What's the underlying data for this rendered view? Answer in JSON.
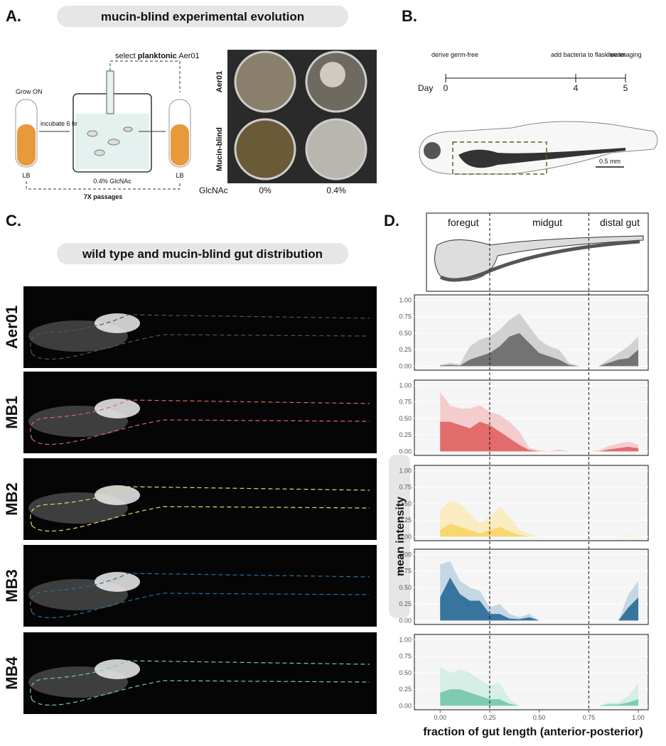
{
  "panels": {
    "a": {
      "label": "A.",
      "title": "mucin-blind experimental evolution",
      "grow": "Grow ON",
      "incubate": "incubate 6 hr",
      "select_pre": "select ",
      "select_bold": "planktonic",
      "select_post": " Aer01",
      "lb_left": "LB",
      "medium": "0.4% GlcNAc",
      "lb_right": "LB",
      "passages": "7X passages",
      "row_labels": [
        "Aer01",
        "Mucin-blind"
      ],
      "glcnac": "GlcNAc",
      "col_labels": [
        "0%",
        "0.4%"
      ]
    },
    "b": {
      "label": "B.",
      "events": [
        "derive germ-free",
        "add bacteria to flask water",
        "live imaging"
      ],
      "day": "Day",
      "days": [
        "0",
        "4",
        "5"
      ],
      "scale": "0.5 mm"
    },
    "c": {
      "label": "C.",
      "title": "wild type and mucin-blind gut distribution",
      "strains": [
        {
          "name": "Aer01",
          "color": "#555555"
        },
        {
          "name": "MB1",
          "color": "#e06666"
        },
        {
          "name": "MB2",
          "color": "#f5d66b"
        },
        {
          "name": "MB3",
          "color": "#2f6f9a"
        },
        {
          "name": "MB4",
          "color": "#79c9ad"
        }
      ]
    },
    "d": {
      "label": "D.",
      "regions": [
        "foregut",
        "midgut",
        "distal gut"
      ],
      "boundaries": [
        0.25,
        0.75
      ],
      "ylabel": "mean intensity",
      "xlabel": "fraction of gut length (anterior-posterior)"
    }
  },
  "chart_data": [
    {
      "type": "area",
      "x": [
        0,
        0.05,
        0.1,
        0.15,
        0.2,
        0.25,
        0.3,
        0.35,
        0.4,
        0.45,
        0.5,
        0.55,
        0.6,
        0.65,
        0.7,
        0.75,
        0.8,
        0.85,
        0.9,
        0.95,
        1
      ],
      "series": [
        {
          "color": "#c8c8c8",
          "values": [
            0.02,
            0.05,
            0.03,
            0.3,
            0.4,
            0.45,
            0.55,
            0.7,
            0.8,
            0.6,
            0.4,
            0.3,
            0.25,
            0.05,
            0,
            0,
            0,
            0.1,
            0.2,
            0.3,
            0.45
          ]
        },
        {
          "color": "#6e6e6e",
          "values": [
            0.01,
            0.02,
            0.01,
            0.1,
            0.15,
            0.2,
            0.3,
            0.45,
            0.5,
            0.35,
            0.2,
            0.15,
            0.1,
            0.02,
            0,
            0,
            0,
            0.05,
            0.1,
            0.12,
            0.25
          ]
        }
      ],
      "xlim": [
        -0.13,
        1.05
      ],
      "ylim": [
        -0.06,
        1.08
      ],
      "yticks": [
        {
          "value": 0,
          "label": "0.00"
        },
        0.25,
        {
          "value": 0.5,
          "label": "0.50"
        },
        0.75,
        {
          "value": 1,
          "label": "1.00"
        }
      ],
      "grid": true
    },
    {
      "type": "area",
      "x": [
        0,
        0.05,
        0.1,
        0.15,
        0.2,
        0.25,
        0.3,
        0.35,
        0.4,
        0.45,
        0.5,
        0.55,
        0.6,
        0.65,
        0.7,
        0.75,
        0.8,
        0.85,
        0.9,
        0.95,
        1
      ],
      "series": [
        {
          "color": "#f4c2c2",
          "values": [
            0.9,
            0.7,
            0.65,
            0.65,
            0.7,
            0.6,
            0.55,
            0.45,
            0.3,
            0.05,
            0.02,
            0,
            0.03,
            0,
            0,
            0,
            0.02,
            0.08,
            0.12,
            0.15,
            0.1
          ]
        },
        {
          "color": "#e06666",
          "values": [
            0.45,
            0.45,
            0.4,
            0.35,
            0.45,
            0.4,
            0.3,
            0.2,
            0.1,
            0.02,
            0,
            0,
            0,
            0,
            0,
            0,
            0,
            0.03,
            0.05,
            0.07,
            0.05
          ]
        }
      ],
      "xlim": [
        -0.13,
        1.05
      ],
      "ylim": [
        -0.06,
        1.08
      ],
      "yticks": [
        {
          "value": 0,
          "label": "0.00"
        },
        0.25,
        {
          "value": 0.5,
          "label": "0.50"
        },
        0.75,
        {
          "value": 1,
          "label": "1.00"
        }
      ],
      "grid": true
    },
    {
      "type": "area",
      "x": [
        0,
        0.05,
        0.1,
        0.15,
        0.2,
        0.25,
        0.3,
        0.35,
        0.4,
        0.45,
        0.5,
        0.55,
        0.6,
        0.65,
        0.7,
        0.75,
        0.8,
        0.85,
        0.9,
        0.95,
        1
      ],
      "series": [
        {
          "color": "#fbeab4",
          "values": [
            0.4,
            0.55,
            0.5,
            0.35,
            0.2,
            0.3,
            0.45,
            0.3,
            0.1,
            0.05,
            0,
            0,
            0,
            0,
            0,
            0,
            0,
            0,
            0,
            0.02,
            0
          ]
        },
        {
          "color": "#f5d66b",
          "values": [
            0.1,
            0.2,
            0.15,
            0.1,
            0.05,
            0.1,
            0.15,
            0.08,
            0.03,
            0,
            0,
            0,
            0,
            0,
            0,
            0,
            0,
            0,
            0,
            0,
            0
          ]
        }
      ],
      "xlim": [
        -0.13,
        1.05
      ],
      "ylim": [
        -0.06,
        1.08
      ],
      "yticks": [
        {
          "value": 0,
          "label": "0.00"
        },
        0.25,
        {
          "value": 0.5,
          "label": "0.50"
        },
        0.75,
        {
          "value": 1,
          "label": "1.00"
        }
      ],
      "grid": true
    },
    {
      "type": "area",
      "x": [
        0,
        0.05,
        0.1,
        0.15,
        0.2,
        0.25,
        0.3,
        0.35,
        0.4,
        0.45,
        0.5,
        0.55,
        0.6,
        0.65,
        0.7,
        0.75,
        0.8,
        0.85,
        0.9,
        0.95,
        1
      ],
      "series": [
        {
          "color": "#b9cfe0",
          "values": [
            0.85,
            0.9,
            0.6,
            0.5,
            0.45,
            0.2,
            0.25,
            0.1,
            0.05,
            0.1,
            0,
            0,
            0,
            0,
            0,
            0,
            0,
            0,
            0,
            0.4,
            0.6
          ]
        },
        {
          "color": "#2f6f9a",
          "values": [
            0.35,
            0.65,
            0.4,
            0.3,
            0.3,
            0.1,
            0.1,
            0.03,
            0.02,
            0.05,
            0,
            0,
            0,
            0,
            0,
            0,
            0,
            0,
            0,
            0.2,
            0.35
          ]
        }
      ],
      "xlim": [
        -0.13,
        1.05
      ],
      "ylim": [
        -0.06,
        1.08
      ],
      "yticks": [
        {
          "value": 0,
          "label": "0.00"
        },
        0.25,
        {
          "value": 0.5,
          "label": "0.50"
        },
        0.75,
        {
          "value": 1,
          "label": "1.00"
        }
      ],
      "grid": true
    },
    {
      "type": "area",
      "x": [
        0,
        0.05,
        0.1,
        0.15,
        0.2,
        0.25,
        0.3,
        0.35,
        0.4,
        0.45,
        0.5,
        0.55,
        0.6,
        0.65,
        0.7,
        0.75,
        0.8,
        0.85,
        0.9,
        0.95,
        1
      ],
      "series": [
        {
          "color": "#cdeee2",
          "values": [
            0.6,
            0.5,
            0.55,
            0.5,
            0.4,
            0.3,
            0.35,
            0.1,
            0,
            0,
            0,
            0,
            0,
            0,
            0,
            0,
            0,
            0.05,
            0.05,
            0.15,
            0.35
          ]
        },
        {
          "color": "#79c9ad",
          "values": [
            0.2,
            0.25,
            0.25,
            0.2,
            0.15,
            0.1,
            0.1,
            0.03,
            0,
            0,
            0,
            0,
            0,
            0,
            0,
            0,
            0,
            0.02,
            0.02,
            0.05,
            0.1
          ]
        }
      ],
      "xlim": [
        -0.13,
        1.05
      ],
      "ylim": [
        -0.06,
        1.08
      ],
      "yticks": [
        {
          "value": 0,
          "label": "0.00"
        },
        0.25,
        {
          "value": 0.5,
          "label": "0.50"
        },
        0.75,
        {
          "value": 1,
          "label": "1.00"
        }
      ],
      "xticks": [
        {
          "value": 0,
          "label": "0.00"
        },
        0.25,
        {
          "value": 0.5,
          "label": "0.50"
        },
        0.75,
        {
          "value": 1,
          "label": "1.00"
        }
      ],
      "grid": true
    }
  ]
}
